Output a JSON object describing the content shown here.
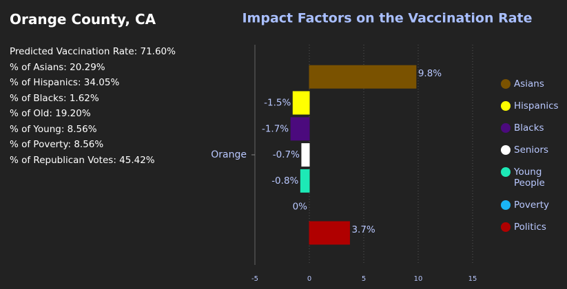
{
  "panel": {
    "title": "Orange County, CA",
    "lines": [
      "Predicted Vaccination Rate: 71.60%",
      "% of Asians: 20.29%",
      "% of Hispanics: 34.05%",
      "% of Blacks: 1.62%",
      "% of Old: 19.20%",
      "% of Young: 8.56%",
      "% of Poverty: 8.56%",
      "% of Republican Votes: 45.42%"
    ]
  },
  "chart_data": {
    "type": "bar",
    "orientation": "horizontal",
    "title": "Impact Factors on the Vaccination Rate",
    "categories": [
      "Orange"
    ],
    "series": [
      {
        "name": "Asians",
        "color": "#7a5200",
        "values": [
          9.8
        ],
        "value_labels": [
          "9.8%"
        ]
      },
      {
        "name": "Hispanics",
        "color": "#ffff00",
        "values": [
          -1.5
        ],
        "value_labels": [
          "-1.5%"
        ]
      },
      {
        "name": "Blacks",
        "color": "#4b0a7d",
        "values": [
          -1.7
        ],
        "value_labels": [
          "-1.7%"
        ]
      },
      {
        "name": "Seniors",
        "color": "#ffffff",
        "values": [
          -0.7
        ],
        "value_labels": [
          "-0.7%"
        ]
      },
      {
        "name": "Young People",
        "color": "#1de9b6",
        "values": [
          -0.8
        ],
        "value_labels": [
          "-0.8%"
        ]
      },
      {
        "name": "Poverty",
        "color": "#1ab4f5",
        "values": [
          0
        ],
        "value_labels": [
          "0%"
        ]
      },
      {
        "name": "Politics",
        "color": "#b00000",
        "values": [
          3.7
        ],
        "value_labels": [
          "3.7%"
        ]
      }
    ],
    "xlim": [
      -5,
      15
    ],
    "xticks": [
      -5,
      0,
      5,
      10,
      15
    ],
    "grid": true,
    "legend": "right"
  }
}
